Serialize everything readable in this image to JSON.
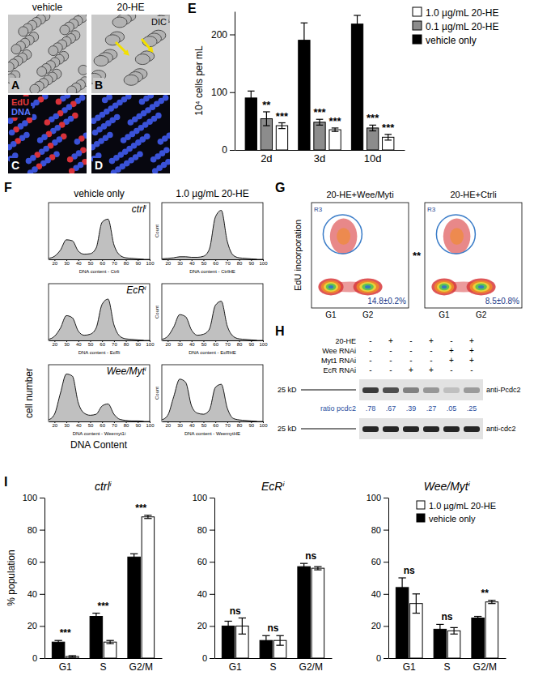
{
  "micrographs": {
    "column_titles": [
      "vehicle",
      "20-HE"
    ],
    "panel_letters": [
      "A",
      "B",
      "C",
      "D"
    ],
    "dic_label": "DIC",
    "stain_labels": [
      {
        "text": "EdU",
        "color": "#e03a3a"
      },
      {
        "text": "DNA",
        "color": "#5a78ff"
      }
    ]
  },
  "chart_data": [
    {
      "type": "bar",
      "panel": "E",
      "y_label": "10⁴ cells per mL",
      "categories": [
        "2d",
        "3d",
        "10d"
      ],
      "series": [
        {
          "name": "vehicle only",
          "color": "#000000",
          "values": [
            90,
            190,
            218
          ],
          "errors": [
            12,
            30,
            15
          ]
        },
        {
          "name": "0.1 µg/mL 20-HE",
          "color": "#8c8c8c",
          "values": [
            54,
            48,
            38
          ],
          "errors": [
            12,
            5,
            5
          ],
          "significance": [
            "**",
            "***",
            "***"
          ]
        },
        {
          "name": "1.0 µg/mL 20-HE",
          "color": "#ffffff",
          "values": [
            42,
            35,
            22
          ],
          "errors": [
            5,
            3,
            5
          ],
          "significance": [
            "***",
            "***",
            "***"
          ]
        }
      ],
      "ylim": [
        0,
        240
      ],
      "yticks": [
        0,
        100,
        200
      ],
      "legend": "top-right"
    },
    {
      "type": "area",
      "panel": "F",
      "column_titles": [
        "vehicle only",
        "1.0 µg/mL 20-HE"
      ],
      "row_labels": [
        "ctrlⁱ",
        "EcRⁱ",
        "Wee/Mytⁱ"
      ],
      "x_label": "DNA Content",
      "y_label": "cell number",
      "color": "#c0c0c0",
      "tick_labels": "x",
      "x": [
        15,
        20,
        25,
        30,
        35,
        40,
        45,
        50,
        55,
        60,
        65,
        70,
        75,
        80,
        85,
        90,
        95
      ],
      "xlim": [
        15,
        100
      ],
      "xticks": [
        20,
        30,
        40,
        50,
        60,
        70,
        80,
        90,
        100
      ],
      "ylim": [
        0,
        110
      ],
      "series": [
        {
          "axis_title": "DNA content - Ctrli",
          "values": [
            2,
            6,
            18,
            38,
            36,
            16,
            10,
            11,
            22,
            72,
            78,
            28,
            8,
            3,
            2,
            1,
            0
          ]
        },
        {
          "axis_title": "DNA content - CtrlHE",
          "y_axis_title": "Count",
          "values": [
            1,
            2,
            3,
            5,
            5,
            4,
            4,
            6,
            20,
            82,
            95,
            35,
            8,
            3,
            2,
            1,
            0
          ]
        },
        {
          "axis_title": "DNA content - EcRi",
          "values": [
            2,
            8,
            24,
            48,
            44,
            18,
            10,
            12,
            24,
            70,
            80,
            30,
            8,
            3,
            2,
            1,
            0
          ]
        },
        {
          "axis_title": "DNA content - EcRHE",
          "y_axis_title": "Count",
          "values": [
            2,
            8,
            26,
            50,
            46,
            20,
            10,
            12,
            22,
            68,
            76,
            28,
            8,
            3,
            2,
            1,
            0
          ]
        },
        {
          "axis_title": "DNA content - Weemyt1i",
          "values": [
            3,
            14,
            55,
            92,
            88,
            36,
            16,
            12,
            14,
            30,
            34,
            14,
            4,
            2,
            1,
            1,
            0
          ]
        },
        {
          "axis_title": "DNA content - WeemytHE",
          "y_axis_title": "Count",
          "values": [
            3,
            12,
            48,
            82,
            76,
            30,
            16,
            14,
            22,
            66,
            72,
            26,
            6,
            3,
            2,
            1,
            0
          ]
        }
      ]
    },
    {
      "type": "bar",
      "panel": "I",
      "title": "ctrlⁱ",
      "y_label": "% population",
      "categories": [
        "G1",
        "S",
        "G2/M"
      ],
      "series": [
        {
          "color": "#000000",
          "values": [
            10,
            26,
            63
          ],
          "errors": [
            1,
            2,
            2
          ]
        },
        {
          "color": "#ffffff",
          "values": [
            1,
            10,
            88
          ],
          "errors": [
            0.5,
            1,
            1
          ]
        }
      ],
      "significance": [
        "***",
        "***",
        "***"
      ],
      "ylim": [
        0,
        100
      ],
      "yticks": [
        0,
        20,
        40,
        60,
        80,
        100
      ]
    },
    {
      "type": "bar",
      "title": "EcRⁱ",
      "categories": [
        "G1",
        "S",
        "G2/M"
      ],
      "series": [
        {
          "color": "#000000",
          "values": [
            20,
            11,
            57
          ],
          "errors": [
            3,
            3,
            2
          ]
        },
        {
          "color": "#ffffff",
          "values": [
            20,
            11,
            56
          ],
          "errors": [
            5,
            3,
            1
          ]
        }
      ],
      "significance": [
        "ns",
        "ns",
        "ns"
      ],
      "ylim": [
        0,
        100
      ],
      "yticks": [
        0,
        20,
        40,
        60,
        80,
        100
      ]
    },
    {
      "type": "bar",
      "title": "Wee/Mytⁱ",
      "categories": [
        "G1",
        "S",
        "G2/M"
      ],
      "series": [
        {
          "name": "vehicle only",
          "color": "#000000",
          "values": [
            44,
            18,
            25
          ],
          "errors": [
            6,
            3,
            1
          ]
        },
        {
          "name": "1.0 µg/mL 20-HE",
          "color": "#ffffff",
          "values": [
            34,
            17,
            35
          ],
          "errors": [
            6,
            2,
            1
          ]
        }
      ],
      "significance": [
        "ns",
        "ns",
        "**"
      ],
      "ylim": [
        0,
        100
      ],
      "yticks": [
        0,
        20,
        40,
        60,
        80,
        100
      ],
      "legend": "top-right"
    }
  ],
  "flow_cytometry": {
    "panel": "G",
    "y_label": "EdU incorporation",
    "plots": [
      {
        "title": "20-HE+Wee/Myti",
        "gate_label": "R3",
        "x_labels": [
          "G1",
          "G2"
        ],
        "percent_label": "14.8±0.2%",
        "significance": "**"
      },
      {
        "title": "20-HE+Ctrli",
        "gate_label": "R3",
        "x_labels": [
          "G1",
          "G2"
        ],
        "percent_label": "8.5±0.8%"
      }
    ]
  },
  "western_blot": {
    "panel": "H",
    "rows": [
      {
        "label": "20-HE",
        "lanes": [
          "-",
          "+",
          "-",
          "+",
          "-",
          "+"
        ]
      },
      {
        "label": "Wee RNAi",
        "lanes": [
          "-",
          "-",
          "-",
          "-",
          "+",
          "+"
        ]
      },
      {
        "label": "Myt1 RNAi",
        "lanes": [
          "-",
          "-",
          "-",
          "-",
          "+",
          "+"
        ]
      },
      {
        "label": "EcR RNAi",
        "lanes": [
          "-",
          "-",
          "+",
          "+",
          "-",
          "-"
        ]
      }
    ],
    "blots": [
      {
        "marker": "25 kD",
        "antibody": "anti-Pcdc2"
      },
      {
        "marker": "25 kD",
        "antibody": "anti-cdc2"
      }
    ],
    "ratio_label": "ratio pcdc2",
    "ratios": [
      {
        "value": 0.78,
        "label": ".78"
      },
      {
        "value": 0.67,
        "label": ".67"
      },
      {
        "value": 0.39,
        "label": ".39"
      },
      {
        "value": 0.27,
        "label": ".27"
      },
      {
        "value": 0.05,
        "label": ".05"
      },
      {
        "value": 0.25,
        "label": ".25"
      }
    ]
  }
}
